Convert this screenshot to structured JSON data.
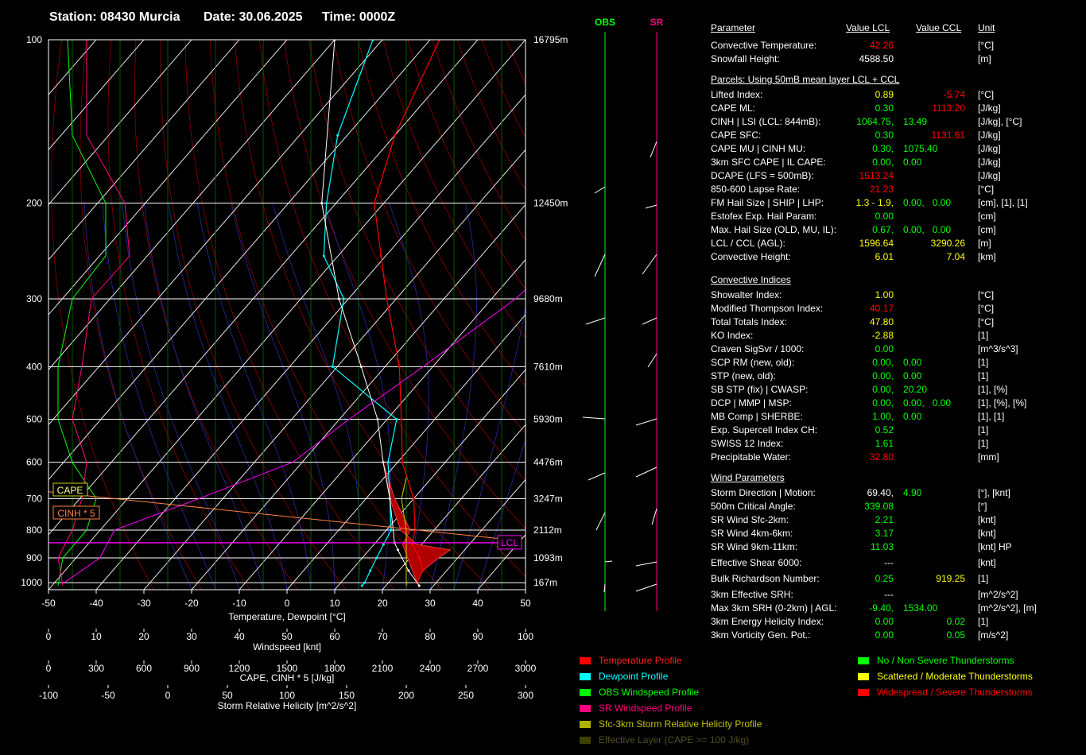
{
  "header": {
    "station": "Station: 08430 Murcia",
    "date": "Date: 30.06.2025",
    "time": "Time: 0000Z"
  },
  "wind_columns": {
    "obs": "OBS",
    "sr": "SR"
  },
  "colors": {
    "temperature": "#ff0000",
    "dewpoint": "#00ffff",
    "obs_wind": "#00ff00",
    "sr_wind": "#ff0080",
    "helicity": "#cccc00",
    "effective_layer": "#404000",
    "lcl": "#ff00ff",
    "cape_fill": "#b00000",
    "value_green": "#00ff00",
    "value_yellow": "#ffff00",
    "value_red": "#ff0000"
  },
  "chart_data": {
    "type": "line",
    "title": "",
    "xlabel": "Temperature, Dewpoint [°C]",
    "ylabel": "",
    "xlim": [
      -50,
      50
    ],
    "x_ticks": [
      "-50",
      "-40",
      "-30",
      "-20",
      "-10",
      "0",
      "10",
      "20",
      "30",
      "40",
      "50"
    ],
    "pressure_levels": [
      {
        "p": 100,
        "label": "100",
        "height": "16795m"
      },
      {
        "p": 200,
        "label": "200",
        "height": "12450m"
      },
      {
        "p": 300,
        "label": "300",
        "height": "9680m"
      },
      {
        "p": 400,
        "label": "400",
        "height": "7610m"
      },
      {
        "p": 500,
        "label": "500",
        "height": "5930m"
      },
      {
        "p": 600,
        "label": "600",
        "height": "4476m"
      },
      {
        "p": 700,
        "label": "700",
        "height": "3247m"
      },
      {
        "p": 800,
        "label": "800",
        "height": "2112m"
      },
      {
        "p": 900,
        "label": "900",
        "height": "1093m"
      },
      {
        "p": 1000,
        "label": "1000",
        "height": "167m"
      }
    ],
    "series": [
      {
        "key": "temperature",
        "values": [
          [
            1013,
            27
          ],
          [
            1000,
            26
          ],
          [
            950,
            25
          ],
          [
            900,
            22
          ],
          [
            850,
            18
          ],
          [
            800,
            16
          ],
          [
            700,
            10
          ],
          [
            600,
            1
          ],
          [
            500,
            -7
          ],
          [
            400,
            -17
          ],
          [
            300,
            -32
          ],
          [
            250,
            -41
          ],
          [
            200,
            -52
          ],
          [
            150,
            -60
          ],
          [
            100,
            -68
          ]
        ]
      },
      {
        "key": "dewpoint",
        "values": [
          [
            1013,
            15
          ],
          [
            1000,
            15
          ],
          [
            950,
            14
          ],
          [
            900,
            13
          ],
          [
            850,
            12
          ],
          [
            800,
            11
          ],
          [
            700,
            5
          ],
          [
            600,
            -2
          ],
          [
            500,
            -8
          ],
          [
            400,
            -31
          ],
          [
            300,
            -41
          ],
          [
            250,
            -53
          ],
          [
            200,
            -62
          ],
          [
            150,
            -72
          ],
          [
            100,
            -82
          ]
        ]
      },
      {
        "key": "parcel",
        "values": [
          [
            1013,
            27
          ],
          [
            950,
            22
          ],
          [
            870,
            16
          ],
          [
            844,
            14
          ],
          [
            700,
            5
          ],
          [
            600,
            -3
          ],
          [
            500,
            -12
          ],
          [
            400,
            -25
          ],
          [
            300,
            -42
          ],
          [
            200,
            -63
          ],
          [
            100,
            -90
          ]
        ]
      }
    ],
    "wind_axis": {
      "label": "Windspeed [knt]",
      "ticks": [
        "0",
        "10",
        "20",
        "30",
        "40",
        "50",
        "60",
        "70",
        "80",
        "90",
        "100"
      ]
    },
    "cape_axis": {
      "label": "CAPE, CINH * 5 [J/kg]",
      "ticks": [
        "0",
        "300",
        "600",
        "900",
        "1200",
        "1500",
        "1800",
        "2100",
        "2400",
        "2700",
        "3000"
      ]
    },
    "srh_axis": {
      "label": "Storm Relative Helicity [m^2/s^2]",
      "ticks": [
        "-100",
        "-50",
        "0",
        "50",
        "100",
        "150",
        "200",
        "250",
        "300"
      ]
    },
    "profile_labels": {
      "cape": "CAPE",
      "cinh": "CINH * 5",
      "lcl": "LCL"
    }
  },
  "table": {
    "headers": {
      "parameter": "Parameter",
      "lcl": "Value LCL",
      "ccl": "Value CCL",
      "unit": "Unit"
    },
    "rows1": [
      {
        "label": "Convective Temperature:",
        "v1": "42.26",
        "c1": "red",
        "unit": "[°C]"
      },
      {
        "label": "Snowfall Height:",
        "v1": "4588.50",
        "c1": "white",
        "unit": "[m]"
      }
    ],
    "parcels_title": "Parcels: Using 50mB mean layer LCL + CCL",
    "rows2": [
      {
        "label": "Lifted Index:",
        "v1": "0.89",
        "c1": "yellow",
        "v2": "-5.74",
        "c2": "red",
        "unit": "[°C]"
      },
      {
        "label": "CAPE ML:",
        "v1": "0.30",
        "c1": "green",
        "v2": "1113.20",
        "c2": "red",
        "unit": "[J/kg]"
      },
      {
        "label": "CINH | LSI (LCL: 844mB):",
        "v1": "1064.75,",
        "c1": "green",
        "v2": "13.49",
        "c2": "green",
        "v2left": true,
        "unit": "[J/kg], [°C]"
      },
      {
        "label": "CAPE SFC:",
        "v1": "0.30",
        "c1": "green",
        "v2": "1131.61",
        "c2": "red",
        "unit": "[J/kg]"
      },
      {
        "label": "CAPE MU | CINH MU:",
        "v1": "0.30,",
        "c1": "green",
        "v2": "1075.40",
        "c2": "green",
        "v2left": true,
        "unit": "[J/kg]"
      },
      {
        "label": "3km SFC CAPE | IL CAPE:",
        "v1": "0.00,",
        "c1": "green",
        "v2": "0.00",
        "c2": "green",
        "v2left": true,
        "unit": "[J/kg]"
      },
      {
        "label": "DCAPE (LFS = 500mB):",
        "v1": "1513.24",
        "c1": "red",
        "unit": "[J/kg]"
      },
      {
        "label": "850-600 Lapse Rate:",
        "v1": "21.23",
        "c1": "red",
        "unit": "[°C]"
      },
      {
        "label": "FM Hail Size | SHIP | LHP:",
        "v1": "1.3 - 1.9,",
        "c1": "yellow",
        "v2": "0.00,   0.00",
        "c2": "green",
        "v2left": true,
        "unit": "[cm], [1], [1]"
      },
      {
        "label": "Estofex Exp. Hail Param:",
        "v1": "0.00",
        "c1": "green",
        "unit": "[cm]"
      },
      {
        "label": "Max. Hail Size (OLD, MU, IL):",
        "v1": "0.67,",
        "c1": "green",
        "v2": "0.00,   0.00",
        "c2": "green",
        "v2left": true,
        "unit": "[cm]"
      },
      {
        "label": "LCL / CCL (AGL):",
        "v1": "1596.64",
        "c1": "yellow",
        "v2": "3290.26",
        "c2": "yellow",
        "unit": "[m]"
      },
      {
        "label": "Convective Height:",
        "v1": "6.01",
        "c1": "yellow",
        "v2": "7.04",
        "c2": "yellow",
        "unit": "[km]"
      }
    ],
    "convective_title": "Convective Indices",
    "rows3": [
      {
        "label": "Showalter Index:",
        "v1": "1.00",
        "c1": "yellow",
        "unit": "[°C]"
      },
      {
        "label": "Modified Thompson Index:",
        "v1": "40.17",
        "c1": "red",
        "unit": "[°C]"
      },
      {
        "label": "Total Totals Index:",
        "v1": "47.80",
        "c1": "yellow",
        "unit": "[°C]"
      },
      {
        "label": "KO Index:",
        "v1": "-2.88",
        "c1": "yellow",
        "unit": "[1]"
      },
      {
        "label": "Craven SigSvr / 1000:",
        "v1": "0.00",
        "c1": "green",
        "unit": "[m^3/s^3]"
      },
      {
        "label": "SCP RM (new, old):",
        "v1": "0.00,",
        "c1": "green",
        "v2": "0.00",
        "c2": "green",
        "v2left": true,
        "unit": "[1]"
      },
      {
        "label": "STP (new, old):",
        "v1": "0.00,",
        "c1": "green",
        "v2": "0.00",
        "c2": "green",
        "v2left": true,
        "unit": "[1]"
      },
      {
        "label": "SB STP (fix) | CWASP:",
        "v1": "0.00,",
        "c1": "green",
        "v2": "20.20",
        "c2": "green",
        "v2left": true,
        "unit": "[1], [%]"
      },
      {
        "label": "DCP | MMP | MSP:",
        "v1": "0.00,",
        "c1": "green",
        "v2": "0.00,   0.00",
        "c2": "green",
        "v2left": true,
        "unit": "[1], [%], [%]"
      },
      {
        "label": "MB Comp | SHERBE:",
        "v1": "1.00,",
        "c1": "green",
        "v2": "0.00",
        "c2": "green",
        "v2left": true,
        "unit": "[1], [1]"
      },
      {
        "label": "Exp. Supercell Index CH:",
        "v1": "0.52",
        "c1": "green",
        "unit": "[1]"
      },
      {
        "label": "SWISS 12 Index:",
        "v1": "1.61",
        "c1": "green",
        "unit": "[1]"
      },
      {
        "label": "Precipitable Water:",
        "v1": "32.80",
        "c1": "red",
        "unit": "[mm]"
      }
    ],
    "wind_title": "Wind Parameters",
    "rows4": [
      {
        "label": "Storm Direction | Motion:",
        "v1": "69.40,",
        "c1": "white",
        "v2": "4.90",
        "c2": "green",
        "v2left": true,
        "unit": "[°], [knt]"
      },
      {
        "label": "500m Critical Angle:",
        "v1": "339.08",
        "c1": "green",
        "unit": "[°]"
      },
      {
        "label": "SR Wind Sfc-2km:",
        "v1": "2.21",
        "c1": "green",
        "unit": "[knt]"
      },
      {
        "label": "SR Wind 4km-6km:",
        "v1": "3.17",
        "c1": "green",
        "unit": "[knt]"
      },
      {
        "label": "SR Wind 9km-11km:",
        "v1": "11.03",
        "c1": "green",
        "unit": "[knt] HP"
      },
      {
        "label": "Effective Shear 6000:",
        "v1": "---",
        "c1": "white",
        "unit": "[knt]",
        "gap": true
      },
      {
        "label": "Bulk Richardson Number:",
        "v1": "0.25",
        "c1": "green",
        "v2": "919.25",
        "c2": "yellow",
        "unit": "[1]",
        "gap": true
      },
      {
        "label": "3km Effective SRH:",
        "v1": "---",
        "c1": "white",
        "unit": "[m^2/s^2]",
        "gap": true
      },
      {
        "label": "Max 3km SRH (0-2km) | AGL:",
        "v1": "-9.40,",
        "c1": "green",
        "v2": "1534.00",
        "c2": "green",
        "v2left": true,
        "unit": "[m^2/s^2], [m]"
      },
      {
        "label": "3km Energy Helicity Index:",
        "v1": "0.00",
        "c1": "green",
        "v2": "0.02",
        "c2": "green",
        "unit": "[1]"
      },
      {
        "label": "3km Vorticity Gen. Pot.:",
        "v1": "0.00",
        "c1": "green",
        "v2": "0.05",
        "c2": "green",
        "unit": "[m/s^2]"
      }
    ]
  },
  "legend_left": [
    {
      "label": "Temperature Profile",
      "color": "#ff0000",
      "text_color": "#ff2020"
    },
    {
      "label": "Dewpoint Profile",
      "color": "#00ffff",
      "text_color": "#00ffff"
    },
    {
      "label": "OBS Windspeed Profile",
      "color": "#00ff00",
      "text_color": "#00ff00"
    },
    {
      "label": "SR Windspeed Profile",
      "color": "#ff0080",
      "text_color": "#ff0080"
    },
    {
      "label": "Sfc-3km Storm Relative Helicity Profile",
      "color": "#b0b000",
      "text_color": "#c0c000"
    },
    {
      "label": "Effective Layer (CAPE >= 100 J/kg)",
      "color": "#404000",
      "text_color": "#505020"
    }
  ],
  "legend_right": [
    {
      "label": "No / Non Severe Thunderstorms",
      "color": "#00ff00"
    },
    {
      "label": "Scattered / Moderate Thunderstorms",
      "color": "#ffff00"
    },
    {
      "label": "Widespread / Severe Thunderstorms",
      "color": "#ff0000"
    }
  ]
}
